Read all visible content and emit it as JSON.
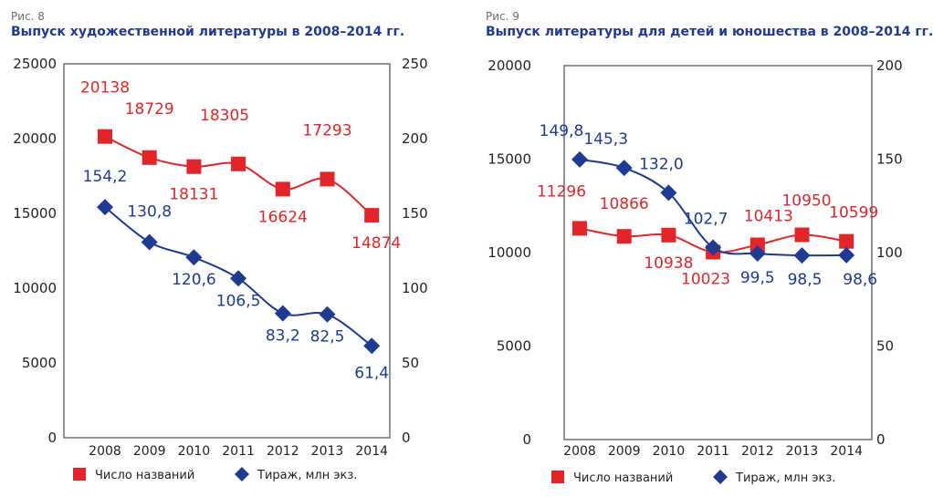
{
  "colors": {
    "red": "#e32428",
    "blue": "#1f3a93",
    "frame": "#7a7a7a",
    "axis_text": "#222222"
  },
  "legend": {
    "count": "Число названий",
    "circulation": "Тираж, млн экз."
  },
  "chart_data": [
    {
      "type": "line",
      "fig_label": "Рис. 8",
      "title": "Выпуск художественной литературы в 2008–2014 гг.",
      "categories": [
        "2008",
        "2009",
        "2010",
        "2011",
        "2012",
        "2013",
        "2014"
      ],
      "y_left": {
        "min": 0,
        "max": 25000,
        "ticks": [
          "0",
          "5000",
          "10000",
          "15000",
          "20000",
          "25000"
        ]
      },
      "y_right": {
        "min": 0,
        "max": 250,
        "ticks": [
          "0",
          "50",
          "100",
          "150",
          "200",
          "250"
        ]
      },
      "grid": false,
      "legend_position": "bottom",
      "series": [
        {
          "name": "Число названий",
          "axis": "left",
          "marker": "square",
          "color": "#e32428",
          "values": [
            20138,
            18729,
            18131,
            18305,
            16624,
            17293,
            14874
          ],
          "labels": [
            "20138",
            "18729",
            "18131",
            "18305",
            "16624",
            "17293",
            "14874"
          ]
        },
        {
          "name": "Тираж, млн экз.",
          "axis": "right",
          "marker": "diamond",
          "color": "#1f3a93",
          "values": [
            154.2,
            130.8,
            120.6,
            106.5,
            83.2,
            82.5,
            61.4
          ],
          "labels": [
            "154,2",
            "130,8",
            "120,6",
            "106,5",
            "83,2",
            "82,5",
            "61,4"
          ]
        }
      ]
    },
    {
      "type": "line",
      "fig_label": "Рис. 9",
      "title": "Выпуск литературы для детей и юношества в 2008–2014 гг.",
      "categories": [
        "2008",
        "2009",
        "2010",
        "2011",
        "2012",
        "2013",
        "2014"
      ],
      "y_left": {
        "min": 0,
        "max": 20000,
        "ticks": [
          "0",
          "5000",
          "10000",
          "15000",
          "20000"
        ]
      },
      "y_right": {
        "min": 0,
        "max": 200,
        "ticks": [
          "0",
          "50",
          "100",
          "150",
          "200"
        ]
      },
      "grid": false,
      "legend_position": "bottom",
      "series": [
        {
          "name": "Число названий",
          "axis": "left",
          "marker": "square",
          "color": "#e32428",
          "values": [
            11296,
            10866,
            10938,
            10023,
            10413,
            10950,
            10599
          ],
          "labels": [
            "11296",
            "10866",
            "10938",
            "10023",
            "10413",
            "10950",
            "10599"
          ]
        },
        {
          "name": "Тираж, млн экз.",
          "axis": "right",
          "marker": "diamond",
          "color": "#1f3a93",
          "values": [
            149.8,
            145.3,
            132.0,
            102.7,
            99.5,
            98.5,
            98.6
          ],
          "labels": [
            "149,8",
            "145,3",
            "132,0",
            "102,7",
            "99,5",
            "98,5",
            "98,6"
          ]
        }
      ]
    }
  ]
}
